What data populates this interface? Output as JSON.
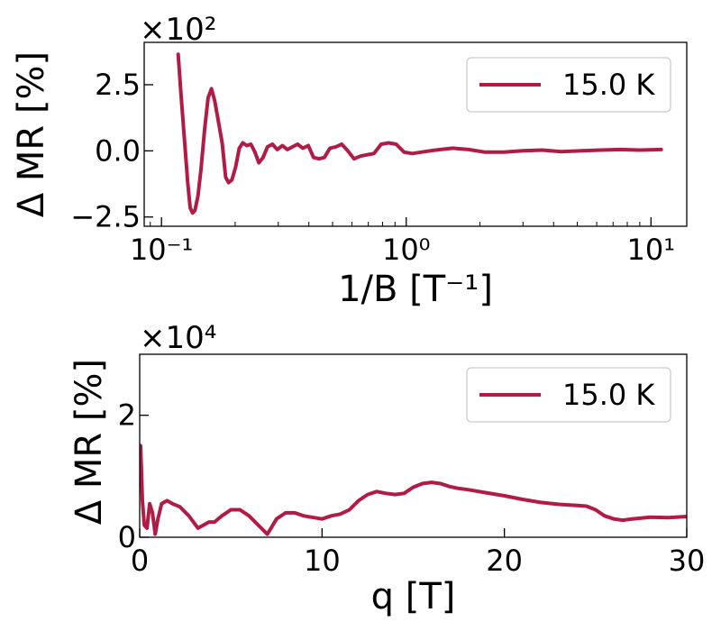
{
  "chart_data": [
    {
      "type": "line",
      "xscale": "log",
      "xlabel": "1/B [T⁻¹]",
      "ylabel": "Δ MR [%]",
      "xlim": [
        0.085,
        14.0
      ],
      "ylim": [
        -2.85,
        4.1
      ],
      "y_multiplier": "×10²",
      "x_ticks": [
        {
          "value": 0.1,
          "label": "10⁻¹"
        },
        {
          "value": 1,
          "label": "10⁰"
        },
        {
          "value": 10,
          "label": "10¹"
        }
      ],
      "y_ticks": [
        {
          "value": 2.5,
          "label": "2.5"
        },
        {
          "value": 0.0,
          "label": "0.0"
        },
        {
          "value": -2.5,
          "label": "−2.5"
        }
      ],
      "legend": {
        "position": "top-right",
        "entries": [
          "15.0 K"
        ]
      },
      "grid": false,
      "series": [
        {
          "name": "15.0 K",
          "color": "#b01c45",
          "x": [
            0.117,
            0.12,
            0.124,
            0.128,
            0.131,
            0.134,
            0.137,
            0.141,
            0.145,
            0.15,
            0.155,
            0.16,
            0.165,
            0.171,
            0.177,
            0.183,
            0.188,
            0.194,
            0.201,
            0.208,
            0.215,
            0.223,
            0.232,
            0.241,
            0.25,
            0.26,
            0.271,
            0.284,
            0.297,
            0.312,
            0.327,
            0.343,
            0.36,
            0.378,
            0.398,
            0.418,
            0.44,
            0.463,
            0.488,
            0.515,
            0.545,
            0.577,
            0.612,
            0.65,
            0.692,
            0.738,
            0.79,
            0.847,
            0.91,
            0.98,
            1.06,
            1.15,
            1.25,
            1.38,
            1.55,
            1.8,
            2.1,
            2.5,
            3.0,
            3.6,
            4.3,
            5.2,
            6.2,
            7.5,
            9.0,
            11.0
          ],
          "y": [
            3.65,
            2.2,
            0.5,
            -1.2,
            -2.15,
            -2.35,
            -2.25,
            -1.7,
            -0.7,
            0.8,
            2.0,
            2.35,
            1.9,
            1.1,
            0.3,
            -1.0,
            -1.2,
            -1.1,
            -0.6,
            0.1,
            0.3,
            0.2,
            0.25,
            -0.05,
            -0.45,
            -0.25,
            0.15,
            0.25,
            0.05,
            0.2,
            0.05,
            0.15,
            0.25,
            0.1,
            0.2,
            -0.25,
            -0.3,
            -0.25,
            0.1,
            0.15,
            0.25,
            0.0,
            -0.3,
            -0.2,
            -0.15,
            -0.1,
            0.25,
            0.3,
            0.25,
            -0.05,
            -0.1,
            -0.05,
            0.0,
            0.05,
            0.1,
            0.05,
            -0.05,
            -0.05,
            0.0,
            0.03,
            -0.03,
            0.0,
            0.03,
            0.05,
            0.03,
            0.05
          ]
        }
      ]
    },
    {
      "type": "line",
      "xlabel": "q [T]",
      "ylabel": "Δ MR [%]",
      "xlim": [
        0,
        30
      ],
      "ylim": [
        0,
        3.0
      ],
      "y_multiplier": "×10⁴",
      "x_ticks": [
        {
          "value": 0,
          "label": "0"
        },
        {
          "value": 10,
          "label": "10"
        },
        {
          "value": 20,
          "label": "20"
        },
        {
          "value": 30,
          "label": "30"
        }
      ],
      "y_ticks": [
        {
          "value": 2,
          "label": "2"
        },
        {
          "value": 0,
          "label": "0"
        }
      ],
      "legend": {
        "position": "top-right",
        "entries": [
          "15.0 K"
        ]
      },
      "grid": false,
      "series": [
        {
          "name": "15.0 K",
          "color": "#b01c45",
          "x": [
            0.05,
            0.15,
            0.25,
            0.4,
            0.55,
            0.7,
            0.85,
            1.0,
            1.2,
            1.5,
            1.8,
            2.2,
            2.7,
            3.2,
            3.5,
            3.8,
            4.1,
            4.5,
            5.0,
            5.5,
            6.0,
            6.5,
            7.0,
            7.2,
            7.5,
            8.0,
            8.5,
            9.0,
            10.0,
            10.5,
            11.0,
            11.5,
            12.0,
            12.5,
            13.0,
            13.5,
            14.0,
            14.5,
            15.0,
            15.5,
            16.0,
            16.5,
            17.0,
            17.5,
            18.0,
            19.0,
            20.0,
            21.0,
            22.0,
            23.0,
            24.0,
            24.5,
            25.0,
            25.5,
            26.0,
            26.5,
            27.0,
            28.0,
            29.0,
            30.0
          ],
          "y": [
            1.5,
            0.6,
            0.2,
            0.15,
            0.55,
            0.4,
            0.05,
            0.3,
            0.55,
            0.6,
            0.55,
            0.5,
            0.35,
            0.15,
            0.2,
            0.25,
            0.25,
            0.35,
            0.45,
            0.45,
            0.35,
            0.2,
            0.05,
            0.15,
            0.3,
            0.4,
            0.4,
            0.35,
            0.3,
            0.35,
            0.38,
            0.45,
            0.6,
            0.7,
            0.75,
            0.72,
            0.7,
            0.72,
            0.82,
            0.88,
            0.9,
            0.88,
            0.83,
            0.8,
            0.78,
            0.73,
            0.68,
            0.62,
            0.57,
            0.54,
            0.52,
            0.51,
            0.45,
            0.35,
            0.3,
            0.28,
            0.3,
            0.33,
            0.32,
            0.34
          ]
        }
      ]
    }
  ]
}
